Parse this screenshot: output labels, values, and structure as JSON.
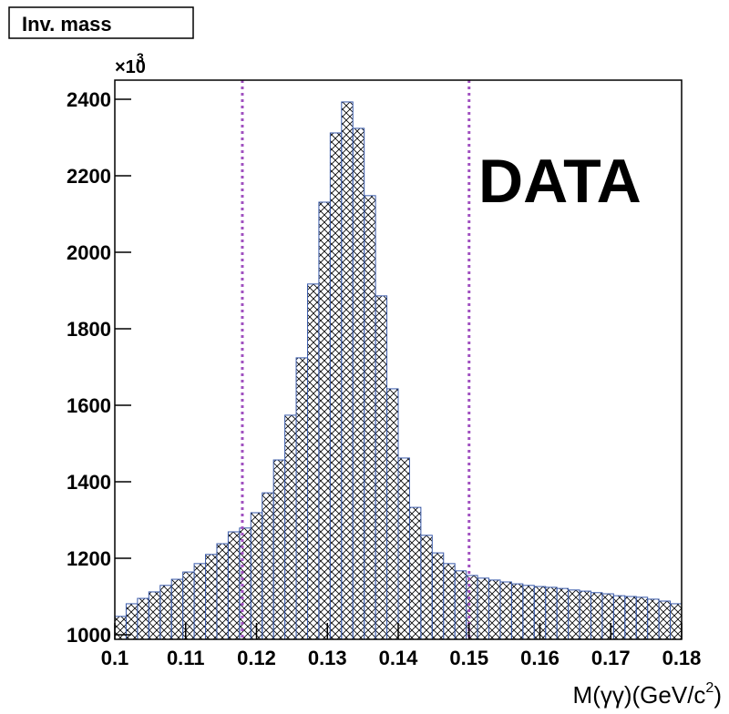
{
  "chart_data": {
    "type": "histogram",
    "stat_box_title": "Inv. mass",
    "y_multiplier": "×10",
    "y_multiplier_exponent": "3",
    "x_label": "M(γγ)(GeV/c",
    "x_label_superscript": "2",
    "x_label_end": ")",
    "annotation": "DATA",
    "bins": [
      0.1,
      0.1016,
      0.1032,
      0.1048,
      0.1064,
      0.108,
      0.1096,
      0.1112,
      0.1128,
      0.1144,
      0.116,
      0.1176,
      0.1192,
      0.1208,
      0.1224,
      0.124,
      0.1256,
      0.1272,
      0.1288,
      0.1304,
      0.132,
      0.1336,
      0.1352,
      0.1368,
      0.1384,
      0.14,
      0.1416,
      0.1432,
      0.1448,
      0.1464,
      0.148,
      0.1496,
      0.1512,
      0.1528,
      0.1544,
      0.156,
      0.1576,
      0.1592,
      0.1608,
      0.1624,
      0.164,
      0.1656,
      0.1672,
      0.1688,
      0.1704,
      0.172,
      0.1736,
      0.1752,
      0.1768,
      0.1784,
      0.18
    ],
    "values": [
      1048,
      1081,
      1095,
      1112,
      1129,
      1145,
      1164,
      1186,
      1210,
      1238,
      1269,
      1279,
      1319,
      1371,
      1457,
      1574,
      1724,
      1917,
      2131,
      2312,
      2393,
      2324,
      2148,
      1886,
      1643,
      1462,
      1333,
      1260,
      1214,
      1186,
      1167,
      1155,
      1148,
      1143,
      1138,
      1133,
      1129,
      1126,
      1124,
      1121,
      1117,
      1114,
      1110,
      1107,
      1102,
      1100,
      1098,
      1093,
      1088,
      1081
    ],
    "color": "#3a5bab",
    "cut_lines": [
      0.118,
      0.15
    ],
    "cut_color": "#a050c0",
    "xlim": [
      0.1,
      0.18
    ],
    "xticks": [
      0.1,
      0.11,
      0.12,
      0.13,
      0.14,
      0.15,
      0.16,
      0.17,
      0.18
    ],
    "ylim": [
      988,
      2450
    ],
    "yticks": [
      1000,
      1200,
      1400,
      1600,
      1800,
      2000,
      2200,
      2400
    ]
  }
}
